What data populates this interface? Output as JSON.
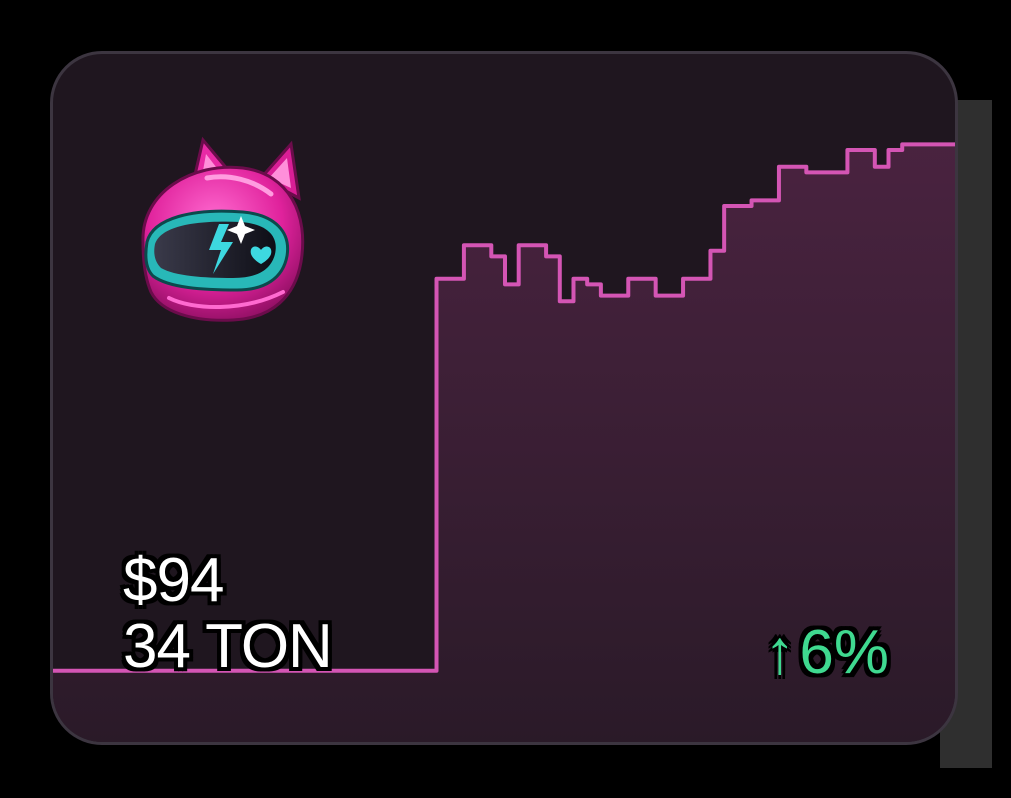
{
  "item": {
    "icon": "pink-cat-ear-helmet-icon",
    "price_usd": "$94",
    "price_ton": "34 TON",
    "change_arrow": "↑",
    "change_percent": "6%"
  },
  "colors": {
    "card_bg": "#1f161f",
    "line": "#d455b4",
    "fill_top": "#4a2340",
    "change": "#3fd990",
    "text": "#ffffff"
  },
  "chart_data": {
    "type": "line",
    "title": "",
    "xlabel": "",
    "ylabel": "",
    "grid": false,
    "legend": "none",
    "ylim": [
      0,
      100
    ],
    "x": [
      0,
      1,
      2,
      3,
      4,
      5,
      6,
      7,
      8,
      9,
      10,
      11,
      12,
      13,
      14,
      15,
      16,
      17,
      18,
      19,
      20,
      21,
      22,
      23,
      24,
      25,
      26,
      27,
      28,
      29,
      30,
      31,
      32,
      33,
      34,
      35,
      36,
      37,
      38,
      39,
      40,
      41,
      42,
      43,
      44,
      45,
      46,
      47,
      48,
      49,
      50,
      51,
      52,
      53,
      54,
      55,
      56,
      57,
      58,
      59,
      60,
      61,
      62,
      63,
      64,
      65,
      66
    ],
    "series": [
      {
        "values": [
          2,
          2,
          2,
          2,
          2,
          2,
          2,
          2,
          2,
          2,
          2,
          2,
          2,
          2,
          2,
          2,
          2,
          2,
          2,
          2,
          2,
          2,
          2,
          2,
          2,
          2,
          2,
          2,
          72,
          72,
          78,
          78,
          76,
          71,
          78,
          78,
          76,
          68,
          72,
          71,
          69,
          69,
          72,
          72,
          69,
          69,
          72,
          72,
          77,
          85,
          85,
          86,
          86,
          92,
          92,
          91,
          91,
          91,
          95,
          95,
          92,
          95,
          96,
          96,
          96,
          96,
          98
        ]
      }
    ]
  }
}
